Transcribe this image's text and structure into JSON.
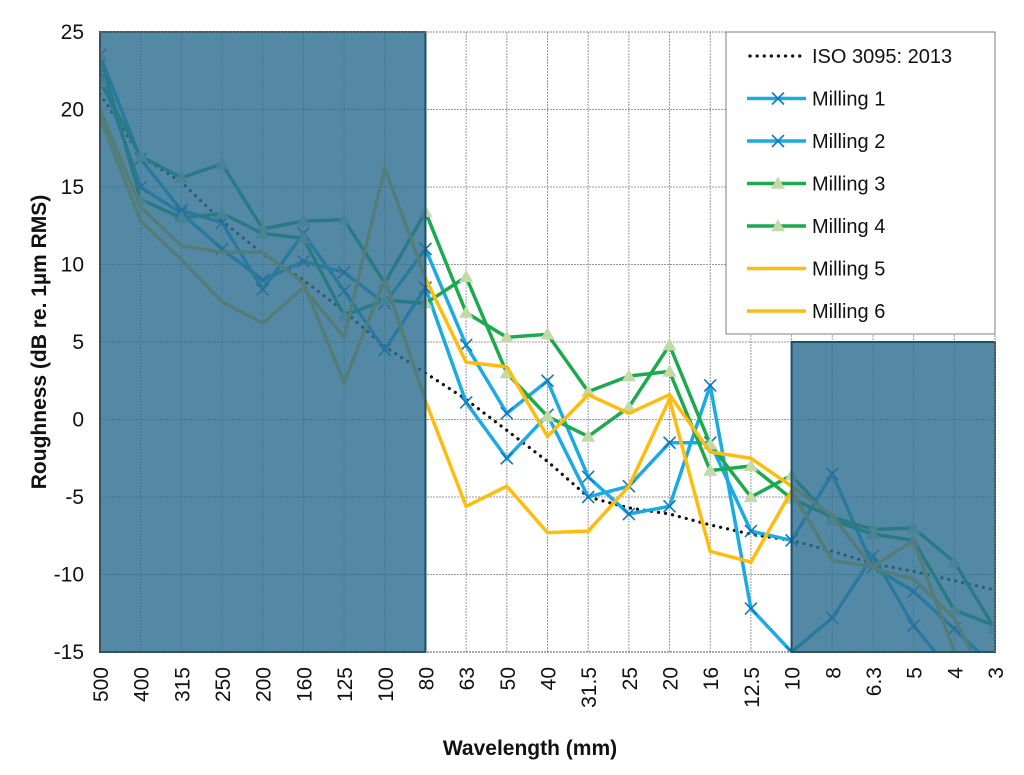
{
  "chart_data": {
    "type": "line",
    "title": "",
    "xlabel": "Wavelength (mm)",
    "ylabel": "Roughness (dB re. 1µm RMS)",
    "ylim": [
      -15,
      25
    ],
    "yticks": [
      -15,
      -10,
      -5,
      0,
      5,
      10,
      15,
      20,
      25
    ],
    "grid": true,
    "legend_position": "top-right",
    "categories": [
      "500",
      "400",
      "315",
      "250",
      "200",
      "160",
      "125",
      "100",
      "80",
      "63",
      "50",
      "40",
      "31.5",
      "25",
      "20",
      "16",
      "12.5",
      "10",
      "8",
      "6.3",
      "5",
      "4",
      "3"
    ],
    "shaded_regions": [
      {
        "from": "500",
        "to": "80",
        "ylim": [
          -15,
          25
        ],
        "color": "#2E6F91",
        "opacity": 0.82
      },
      {
        "from": "10",
        "to": "3",
        "ylim": [
          -15,
          5
        ],
        "color": "#2E6F91",
        "opacity": 0.82
      }
    ],
    "series": [
      {
        "name": "ISO 3095: 2013",
        "color": "#111111",
        "style": "dotted",
        "marker": "none",
        "values": [
          21,
          17,
          15.3,
          12.8,
          10.7,
          9,
          7,
          4.7,
          3,
          1.3,
          -0.7,
          -2.7,
          -5,
          -5.7,
          -6.1,
          -6.8,
          -7.4,
          -7.8,
          -8.5,
          -9.3,
          -9.8,
          -10.4,
          -11
        ]
      },
      {
        "name": "Milling 1",
        "color": "#1AABE2",
        "style": "solid",
        "marker": "x",
        "values": [
          22.4,
          15,
          13.3,
          11,
          9,
          10.2,
          9.5,
          7.5,
          11,
          4.8,
          0.4,
          2.5,
          -3.7,
          -6.1,
          -5.6,
          2.2,
          -12.2,
          -15,
          -12.8,
          -8.8,
          -13.3,
          -16.5,
          -18
        ]
      },
      {
        "name": "Milling 2",
        "color": "#1AABE2",
        "style": "solid",
        "marker": "x",
        "values": [
          23.5,
          16.8,
          13.5,
          12.7,
          8.4,
          12,
          8.3,
          4.5,
          8.5,
          1.1,
          -2.5,
          0.3,
          -5,
          -4.3,
          -1.5,
          -1.5,
          -7.2,
          -7.8,
          -3.5,
          -9.5,
          -11.1,
          -13.5,
          -16
        ]
      },
      {
        "name": "Milling 3",
        "color": "#1BAA4E",
        "style": "solid",
        "marker": "triangle",
        "values": [
          21.8,
          17,
          15.6,
          16.5,
          12.3,
          12.8,
          12.9,
          8.8,
          13.4,
          6.9,
          5.3,
          5.5,
          1.8,
          2.8,
          3.1,
          -3.3,
          -3,
          -5.1,
          -6.3,
          -7.1,
          -7,
          -9.2,
          -13.5
        ]
      },
      {
        "name": "Milling 4",
        "color": "#1BAA4E",
        "style": "solid",
        "marker": "triangle",
        "values": [
          23.5,
          14.2,
          13,
          13.3,
          12,
          11.7,
          6.7,
          7.7,
          7.5,
          9.2,
          3,
          0.2,
          -1.1,
          0.8,
          4.8,
          -1.6,
          -5,
          -3.6,
          -6.5,
          -7.4,
          -7.8,
          -12.3,
          -13.3
        ]
      },
      {
        "name": "Milling 5",
        "color": "#FFBC0F",
        "style": "solid",
        "marker": "none",
        "values": [
          20,
          13.7,
          11.2,
          10.8,
          10.8,
          8.8,
          2.4,
          9,
          1.2,
          -5.6,
          -4.3,
          -7.3,
          -7.2,
          -4.3,
          1.3,
          -8.5,
          -9.2,
          -4.6,
          -9.1,
          -9.5,
          -7.8,
          -15,
          -18
        ]
      },
      {
        "name": "Milling 6",
        "color": "#FFBC0F",
        "style": "solid",
        "marker": "none",
        "values": [
          19.5,
          12.8,
          10.3,
          7.6,
          6.2,
          8.5,
          5.3,
          16.2,
          9.1,
          3.7,
          3.4,
          -1.1,
          1.6,
          0.4,
          1.6,
          -2.1,
          -2.5,
          -4.3,
          -6.2,
          -9.6,
          -10.3,
          -12.8,
          -18
        ]
      }
    ]
  }
}
